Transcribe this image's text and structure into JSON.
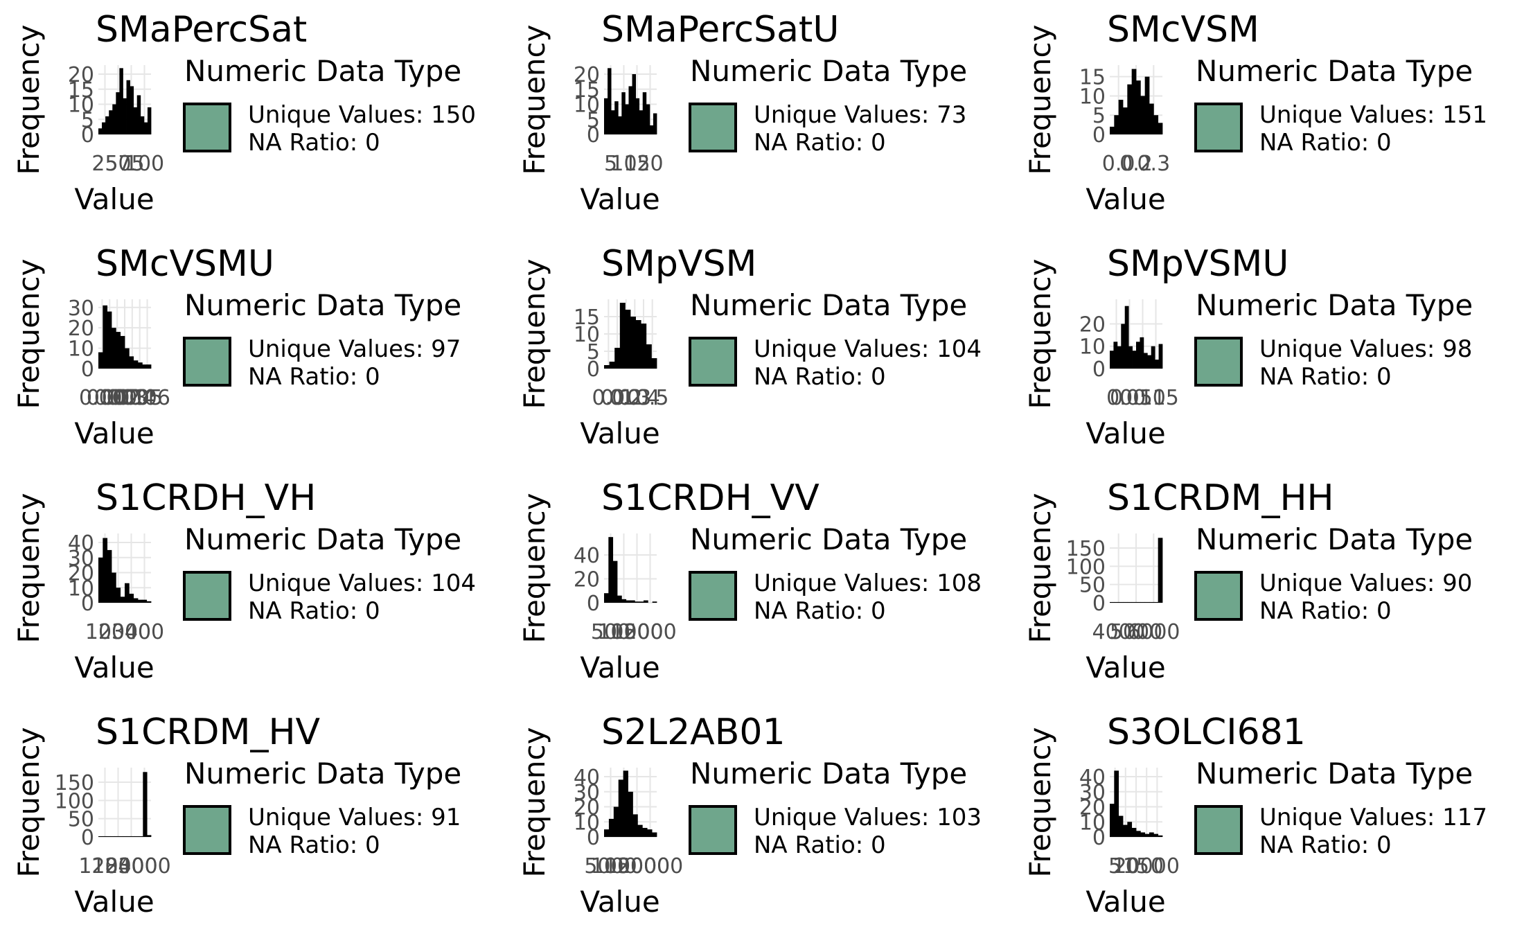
{
  "legend_title": "Numeric Data Type",
  "legend_color": "#6fa68c",
  "axis_labels": {
    "x": "Value",
    "y": "Frequency"
  },
  "unique_label": "Unique Values: ",
  "na_label": "NA Ratio: ",
  "chart_data": [
    {
      "type": "bar",
      "title": "SMaPercSat",
      "unique_values": 150,
      "na_ratio": 0,
      "x_ticks": [
        "25",
        "50",
        "75",
        "100"
      ],
      "y_ticks": [
        0,
        5,
        10,
        15,
        20
      ],
      "ylim": [
        0,
        23
      ],
      "values": [
        2,
        4,
        6,
        8,
        10,
        14,
        22,
        12,
        18,
        16,
        9,
        13,
        6,
        4,
        9
      ]
    },
    {
      "type": "bar",
      "title": "SMaPercSatU",
      "unique_values": 73,
      "na_ratio": 0,
      "x_ticks": [
        "5",
        "10",
        "15",
        "20"
      ],
      "y_ticks": [
        0,
        5,
        10,
        15,
        20
      ],
      "ylim": [
        0,
        23
      ],
      "values": [
        12,
        22,
        8,
        11,
        6,
        14,
        10,
        16,
        20,
        12,
        8,
        14,
        10,
        3,
        7
      ]
    },
    {
      "type": "bar",
      "title": "SMcVSM",
      "unique_values": 151,
      "na_ratio": 0,
      "x_ticks": [
        "0.0",
        "0.2",
        "0.3"
      ],
      "y_ticks": [
        0,
        5,
        10,
        15
      ],
      "ylim": [
        0,
        18
      ],
      "values": [
        2,
        5,
        9,
        7,
        13,
        17,
        14,
        10,
        15,
        8,
        5,
        3
      ]
    },
    {
      "type": "bar",
      "title": "SMcVSMU",
      "unique_values": 97,
      "na_ratio": 0,
      "x_ticks": [
        "0.00",
        "0.01",
        "0.02",
        "0.03",
        "0.04",
        "0.05",
        "0.06"
      ],
      "y_ticks": [
        0,
        10,
        20,
        30
      ],
      "ylim": [
        0,
        34
      ],
      "values": [
        8,
        31,
        28,
        20,
        18,
        16,
        10,
        6,
        4,
        3,
        2,
        2
      ]
    },
    {
      "type": "bar",
      "title": "SMpVSM",
      "unique_values": 104,
      "na_ratio": 0,
      "x_ticks": [
        "0.0",
        "0.1",
        "0.2",
        "0.3",
        "0.4",
        "0.5"
      ],
      "y_ticks": [
        0,
        5,
        10,
        15
      ],
      "ylim": [
        0,
        20
      ],
      "values": [
        1,
        2,
        6,
        19,
        17,
        15,
        14,
        13,
        7,
        3
      ]
    },
    {
      "type": "bar",
      "title": "SMpVSMU",
      "unique_values": 98,
      "na_ratio": 0,
      "x_ticks": [
        "0",
        "0.05",
        "0.10",
        "0.15"
      ],
      "y_ticks": [
        0,
        10,
        20
      ],
      "ylim": [
        0,
        31
      ],
      "values": [
        8,
        12,
        10,
        20,
        28,
        10,
        8,
        12,
        14,
        7,
        6,
        10,
        4,
        11
      ]
    },
    {
      "type": "bar",
      "title": "S1CRDH_VH",
      "unique_values": 104,
      "na_ratio": 0,
      "x_ticks": [
        "100",
        "200",
        "300",
        "400"
      ],
      "y_ticks": [
        0,
        10,
        20,
        30,
        40
      ],
      "ylim": [
        0,
        46
      ],
      "values": [
        30,
        43,
        35,
        20,
        10,
        4,
        13,
        6,
        3,
        2,
        2,
        1
      ]
    },
    {
      "type": "bar",
      "title": "S1CRDH_VV",
      "unique_values": 108,
      "na_ratio": 0,
      "x_ticks": [
        "500",
        "1000",
        "1500",
        "2000"
      ],
      "y_ticks": [
        0,
        20,
        40
      ],
      "ylim": [
        0,
        58
      ],
      "values": [
        8,
        55,
        35,
        6,
        3,
        2,
        2,
        1,
        1,
        2,
        0,
        1
      ]
    },
    {
      "type": "bar",
      "title": "S1CRDM_HH",
      "unique_values": 90,
      "na_ratio": 0,
      "x_ticks": [
        "4000",
        "5000",
        "6000"
      ],
      "y_ticks": [
        0,
        50,
        100,
        150
      ],
      "ylim": [
        0,
        190
      ],
      "values": [
        2,
        2,
        2,
        2,
        2,
        2,
        2,
        2,
        2,
        2,
        2,
        178
      ]
    },
    {
      "type": "bar",
      "title": "S1CRDM_HV",
      "unique_values": 91,
      "na_ratio": 0,
      "x_ticks": [
        "1200",
        "1800",
        "2400",
        "3000"
      ],
      "y_ticks": [
        0,
        50,
        100,
        150
      ],
      "ylim": [
        0,
        190
      ],
      "values": [
        2,
        2,
        2,
        2,
        2,
        2,
        2,
        2,
        2,
        2,
        2,
        178,
        5
      ]
    },
    {
      "type": "bar",
      "title": "S2L2AB01",
      "unique_values": 103,
      "na_ratio": 0,
      "x_ticks": [
        "5000",
        "10000",
        "15000",
        "20000"
      ],
      "y_ticks": [
        0,
        10,
        20,
        30,
        40
      ],
      "ylim": [
        0,
        46
      ],
      "values": [
        5,
        12,
        20,
        38,
        44,
        30,
        15,
        8,
        6,
        5,
        3
      ]
    },
    {
      "type": "bar",
      "title": "S3OLCI681",
      "unique_values": 117,
      "na_ratio": 0,
      "x_ticks": [
        "5",
        "10",
        "15",
        "20000",
        "0"
      ],
      "y_ticks": [
        0,
        10,
        20,
        30,
        40
      ],
      "ylim": [
        0,
        46
      ],
      "values": [
        22,
        44,
        14,
        8,
        10,
        6,
        4,
        3,
        2,
        3,
        2,
        1
      ]
    }
  ]
}
